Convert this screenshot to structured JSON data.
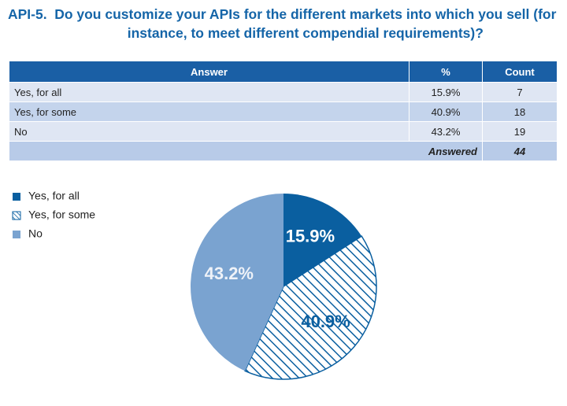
{
  "title": {
    "label": "API-5.",
    "text": "Do you customize your APIs for the different markets into which you sell (for instance, to meet different compendial requirements)?"
  },
  "table": {
    "columns": [
      "Answer",
      "%",
      "Count"
    ],
    "rows": [
      [
        "Yes, for all",
        "15.9%",
        7
      ],
      [
        "Yes, for some",
        "40.9%",
        18
      ],
      [
        "No",
        "43.2%",
        19
      ]
    ],
    "footer": {
      "label": "Answered",
      "count": 44
    }
  },
  "chart_data": {
    "type": "pie",
    "categories": [
      "Yes, for all",
      "Yes, for some",
      "No"
    ],
    "values": [
      15.9,
      40.9,
      43.2
    ],
    "value_labels": [
      "15.9%",
      "40.9%",
      "43.2%"
    ],
    "colors": [
      "#0a5fa0",
      "#0a5fa0",
      "#7aa3d0"
    ],
    "hatch": [
      false,
      true,
      false
    ],
    "label_colors": [
      "#ffffff",
      "#0a5fa0",
      "#eef2f8"
    ],
    "legend": "top-left"
  }
}
